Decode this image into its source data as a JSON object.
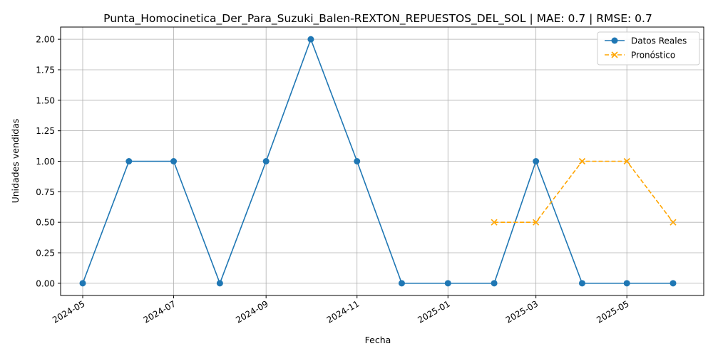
{
  "chart_data": {
    "type": "line",
    "title": "Punta_Homocinetica_Der_Para_Suzuki_Balen-REXTON_REPUESTOS_DEL_SOL | MAE: 0.7 | RMSE: 0.7",
    "xlabel": "Fecha",
    "ylabel": "Unidades vendidas",
    "ylim": [
      -0.1,
      2.1
    ],
    "grid": true,
    "legend_position": "top-right",
    "x_ticks": [
      "2024-05",
      "2024-07",
      "2024-09",
      "2024-11",
      "2025-01",
      "2025-03",
      "2025-05"
    ],
    "y_ticks": [
      "0.00",
      "0.25",
      "0.50",
      "0.75",
      "1.00",
      "1.25",
      "1.50",
      "1.75",
      "2.00"
    ],
    "series": [
      {
        "name": "Datos Reales",
        "color": "#1f77b4",
        "marker": "circle",
        "linestyle": "solid",
        "x": [
          "2024-05-01",
          "2024-06-01",
          "2024-07-01",
          "2024-08-01",
          "2024-09-01",
          "2024-10-01",
          "2024-11-01",
          "2024-12-01",
          "2025-01-01",
          "2025-02-01",
          "2025-03-01",
          "2025-04-01",
          "2025-05-01",
          "2025-06-01"
        ],
        "y": [
          0,
          1,
          1,
          0,
          1,
          2,
          1,
          0,
          0,
          0,
          1,
          0,
          0,
          0
        ]
      },
      {
        "name": "Pronóstico",
        "color": "#ffa500",
        "marker": "x",
        "linestyle": "dashed",
        "x": [
          "2025-02-01",
          "2025-03-01",
          "2025-04-01",
          "2025-05-01",
          "2025-06-01"
        ],
        "y": [
          0.5,
          0.5,
          1,
          1,
          0.5
        ]
      }
    ]
  }
}
